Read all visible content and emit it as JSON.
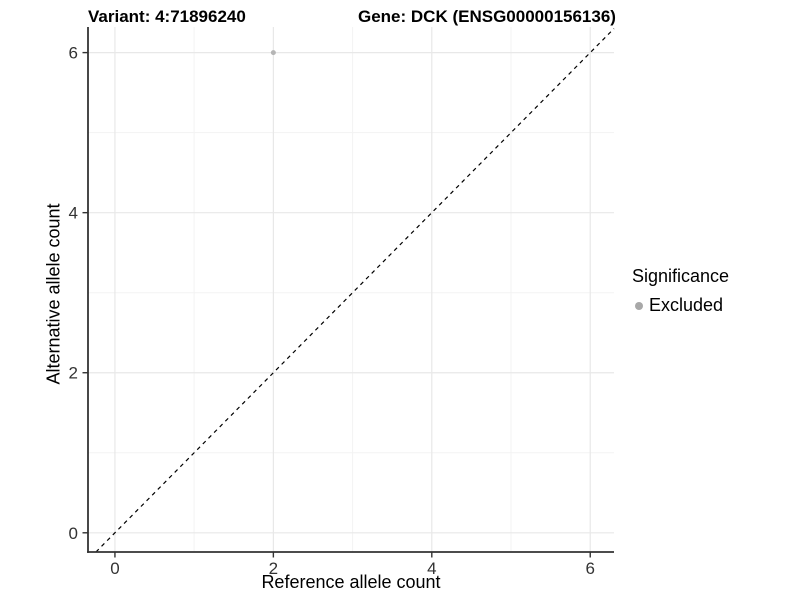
{
  "chart_data": {
    "type": "scatter",
    "titles": {
      "left": "Variant: 4:71896240",
      "right": "Gene: DCK (ENSG00000156136)"
    },
    "xlabel": "Reference allele count",
    "ylabel": "Alternative allele count",
    "xlim": [
      -0.34,
      6.3
    ],
    "ylim": [
      -0.24,
      6.32
    ],
    "xticks": [
      0,
      2,
      4,
      6
    ],
    "yticks": [
      0,
      2,
      4,
      6
    ],
    "xticks_minor": [
      1,
      3,
      5
    ],
    "yticks_minor": [
      1,
      3,
      5
    ],
    "grid": "major+minor",
    "points": [
      {
        "x": 2,
        "y": 6,
        "significance": "Excluded"
      }
    ],
    "reference_line": {
      "slope": 1,
      "intercept": 0,
      "style": "dashed",
      "color": "#000000"
    },
    "legend": {
      "position": "right",
      "title": "Significance",
      "entries": [
        {
          "label": "Excluded",
          "marker": "circle",
          "color": "#a8a8a8"
        }
      ]
    },
    "colors": {
      "point": "#b5b5b5",
      "grid_major": "#e8e8e8",
      "grid_minor": "#f3f3f3",
      "axis": "#333333",
      "tick_text": "#333333",
      "background": "#ffffff"
    }
  }
}
